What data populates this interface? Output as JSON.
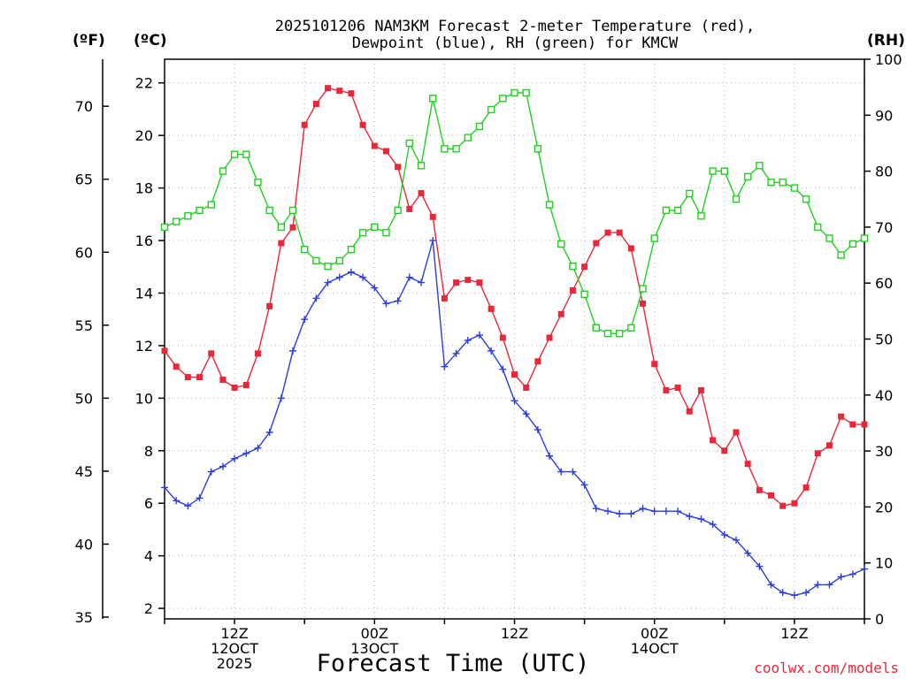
{
  "title": {
    "line1": "2025101206 NAM3KM Forecast 2-meter Temperature (red),",
    "line2": "Dewpoint (blue), RH (green) for KMCW"
  },
  "axes": {
    "left_unit": "(ºF)",
    "center_unit": "(ºC)",
    "right_unit": "(RH)",
    "fahrenheit_ticks": [
      "35",
      "40",
      "45",
      "50",
      "55",
      "60",
      "65",
      "70"
    ],
    "celsius_ticks": [
      "2",
      "4",
      "6",
      "8",
      "10",
      "12",
      "14",
      "16",
      "18",
      "20",
      "22"
    ],
    "rh_ticks": [
      "0",
      "10",
      "20",
      "30",
      "40",
      "50",
      "60",
      "70",
      "80",
      "90",
      "100"
    ],
    "x_ticks": [
      {
        "hour": 12,
        "lines": [
          "12Z",
          "12OCT",
          "2025"
        ]
      },
      {
        "hour": 24,
        "lines": [
          "00Z",
          "13OCT"
        ]
      },
      {
        "hour": 36,
        "lines": [
          "12Z",
          ""
        ]
      },
      {
        "hour": 48,
        "lines": [
          "00Z",
          "14OCT"
        ]
      },
      {
        "hour": 60,
        "lines": [
          "12Z",
          ""
        ]
      }
    ]
  },
  "xlabel": "Forecast Time (UTC)",
  "credit": "coolwx.com/models",
  "colors": {
    "temperature": "#e8283a",
    "dewpoint": "#2a3ee0",
    "rh": "#22d022",
    "grid": "#b4b4b4"
  },
  "chart_data": {
    "type": "line",
    "x_unit": "hours after 2025-10-12 06Z",
    "xlim": [
      6,
      66
    ],
    "ylim_celsius": [
      1.6,
      22.9
    ],
    "ylim_rh": [
      0,
      100
    ],
    "x": [
      6,
      7,
      8,
      9,
      10,
      11,
      12,
      13,
      14,
      15,
      16,
      17,
      18,
      19,
      20,
      21,
      22,
      23,
      24,
      25,
      26,
      27,
      28,
      29,
      30,
      31,
      32,
      33,
      34,
      35,
      36,
      37,
      38,
      39,
      40,
      41,
      42,
      43,
      44,
      45,
      46,
      47,
      48,
      49,
      50,
      51,
      52,
      53,
      54,
      55,
      56,
      57,
      58,
      59,
      60,
      61,
      62,
      63,
      64,
      65,
      66
    ],
    "series": [
      {
        "name": "Temperature (°C)",
        "color": "#e8283a",
        "marker": "filled-square",
        "axis": "celsius",
        "values": [
          11.8,
          11.2,
          10.8,
          10.8,
          11.7,
          10.7,
          10.4,
          10.5,
          11.7,
          13.5,
          15.9,
          16.5,
          20.4,
          21.2,
          21.8,
          21.7,
          21.6,
          20.4,
          19.6,
          19.4,
          18.8,
          17.2,
          17.8,
          16.9,
          13.8,
          14.4,
          14.5,
          14.4,
          13.4,
          12.3,
          10.9,
          10.4,
          11.4,
          12.3,
          13.2,
          14.1,
          15.0,
          15.9,
          16.3,
          16.3,
          15.7,
          13.6,
          11.3,
          10.3,
          10.4,
          9.5,
          10.3,
          8.4,
          8.0,
          8.7,
          7.5,
          6.5,
          6.3,
          5.9,
          6.0,
          6.6,
          7.9,
          8.2,
          9.3,
          9.0,
          9.0
        ]
      },
      {
        "name": "Dewpoint (°C)",
        "color": "#2a3ee0",
        "marker": "plus",
        "axis": "celsius",
        "values": [
          6.6,
          6.1,
          5.9,
          6.2,
          7.2,
          7.4,
          7.7,
          7.9,
          8.1,
          8.7,
          10.0,
          11.8,
          13.0,
          13.8,
          14.4,
          14.6,
          14.8,
          14.6,
          14.2,
          13.6,
          13.7,
          14.6,
          14.4,
          16.0,
          11.2,
          11.7,
          12.2,
          12.4,
          11.8,
          11.1,
          9.9,
          9.4,
          8.8,
          7.8,
          7.2,
          7.2,
          6.7,
          5.8,
          5.7,
          5.6,
          5.6,
          5.8,
          5.7,
          5.7,
          5.7,
          5.5,
          5.4,
          5.2,
          4.8,
          4.6,
          4.1,
          3.6,
          2.9,
          2.6,
          2.5,
          2.6,
          2.9,
          2.9,
          3.2,
          3.3,
          3.5
        ]
      },
      {
        "name": "RH (%)",
        "color": "#22d022",
        "marker": "open-square",
        "axis": "rh",
        "values": [
          70,
          71,
          72,
          73,
          74,
          80,
          83,
          83,
          78,
          73,
          70,
          73,
          66,
          64,
          63,
          64,
          66,
          69,
          70,
          69,
          73,
          85,
          81,
          93,
          84,
          84,
          86,
          88,
          91,
          93,
          94,
          94,
          84,
          74,
          67,
          63,
          58,
          52,
          51,
          51,
          52,
          59,
          68,
          73,
          73,
          76,
          72,
          80,
          80,
          75,
          79,
          81,
          78,
          78,
          77,
          75,
          70,
          68,
          65,
          67,
          68
        ]
      }
    ]
  }
}
